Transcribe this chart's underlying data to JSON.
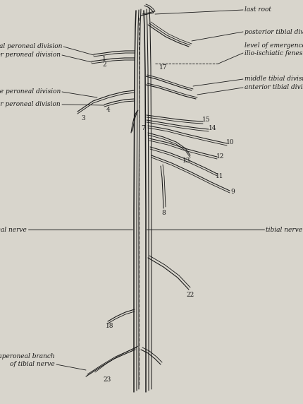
{
  "bg_color": "#d8d5cc",
  "line_color": "#1a1a1a",
  "fig_width": 4.31,
  "fig_height": 5.72,
  "dpi": 100,
  "fontsize": 6.5,
  "labels": {
    "last_root": "last root",
    "posterior_tibial_division": "posterior tibial division",
    "level_of_emergence": "level of emergence from\nilio-ischiatic fenestra",
    "middle_tibial_division": "middle tibial division",
    "anterior_tibial_division": "anterior tibial division",
    "dorsal_peroneal_division": "dorsal peroneal division",
    "anterior_peroneal_division": "anterior peroneal division",
    "middle_peroneal_division": "middle peroneal division",
    "posterior_peroneal_division": "posterior peroneal division",
    "peroneal_nerve": "peroneal nerve",
    "tibial_nerve": "tibial nerve",
    "paraperoneal_branch": "paraperoneal branch\nof tibial nerve"
  }
}
